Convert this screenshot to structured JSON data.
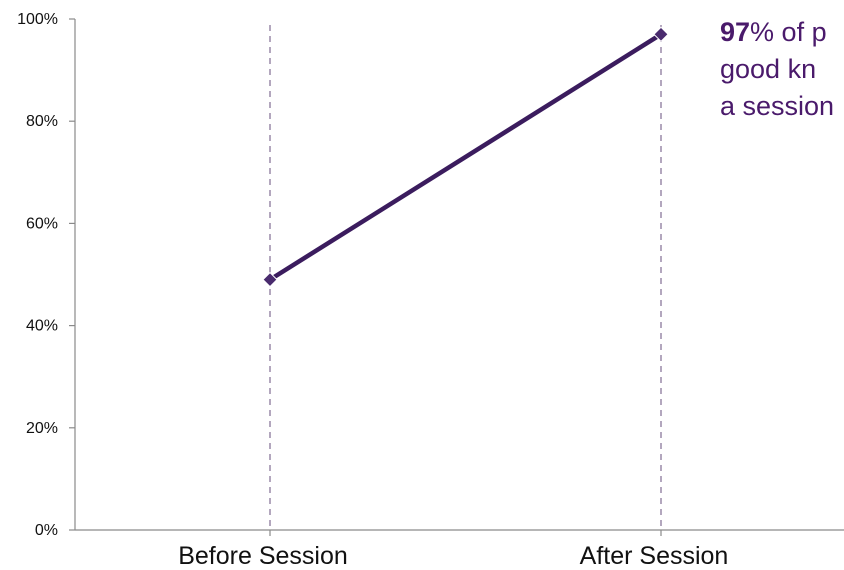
{
  "chart_data": {
    "type": "line",
    "categories": [
      "Before Session",
      "After Session"
    ],
    "series": [
      {
        "values": [
          49,
          97
        ]
      }
    ],
    "ylim": [
      0,
      100
    ],
    "yticks": [
      0,
      20,
      40,
      60,
      80,
      100
    ],
    "ytick_labels": [
      "0%",
      "20%",
      "40%",
      "60%",
      "80%",
      "100%"
    ],
    "title": "",
    "xlabel": "",
    "ylabel": "",
    "grid": false,
    "vertical_guides": true,
    "colors": {
      "line": "#3b1c5e",
      "marker": "#4a2b6e",
      "guide": "#9a8aa8",
      "axis": "#8a8a8a",
      "annotation": "#4a1a6b"
    }
  },
  "annotation": {
    "highlight": "97",
    "line1_rest": "% of p",
    "line2": "good kn",
    "line3": "a session"
  }
}
